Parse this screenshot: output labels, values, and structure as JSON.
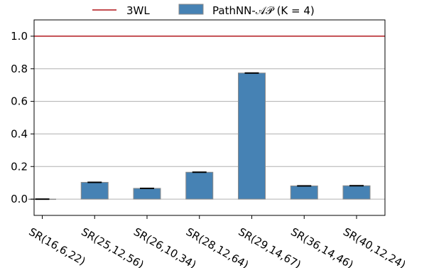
{
  "chart_data": {
    "type": "bar",
    "categories": [
      "SR(16,6,22)",
      "SR(25,12,56)",
      "SR(26,10,34)",
      "SR(28,12,64)",
      "SR(29,14,67)",
      "SR(36,14,46)",
      "SR(40,12,24)"
    ],
    "series": [
      {
        "name": "PathNN-𝒜𝒫 (K = 4)",
        "values": [
          0.0,
          0.103,
          0.066,
          0.165,
          0.774,
          0.081,
          0.082
        ],
        "errors": [
          0.0,
          0.002,
          0.002,
          0.002,
          0.003,
          0.002,
          0.002
        ],
        "color": "#4682b4"
      }
    ],
    "reference_lines": [
      {
        "name": "3WL",
        "y": 1.0,
        "color": "#c44e52"
      }
    ],
    "yticks": [
      0.0,
      0.2,
      0.4,
      0.6,
      0.8,
      1.0
    ],
    "ytick_labels": [
      "0.0",
      "0.2",
      "0.4",
      "0.6",
      "0.8",
      "1.0"
    ],
    "ylim": [
      -0.1,
      1.1
    ],
    "grid": "horizontal",
    "legend_position": "top-center",
    "title": "",
    "xlabel": "",
    "ylabel": ""
  }
}
